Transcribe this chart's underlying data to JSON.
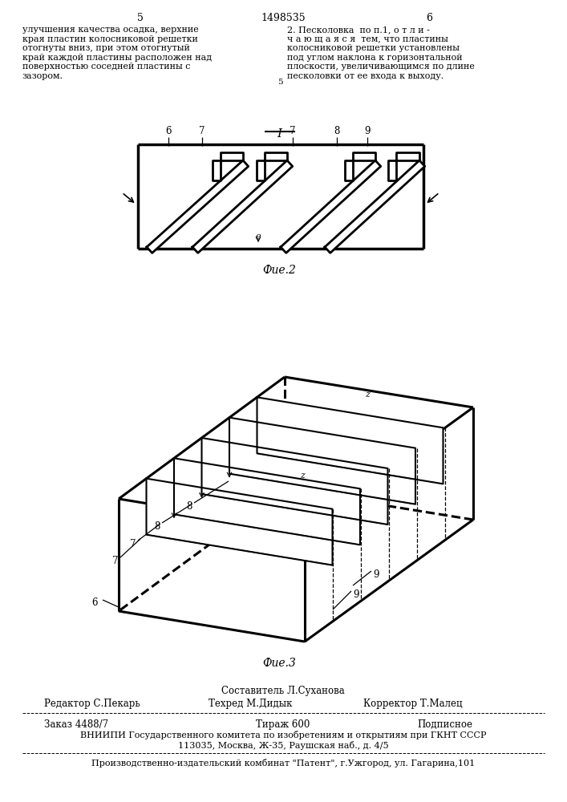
{
  "page_number_left": "5",
  "page_number_right": "6",
  "patent_number": "1498535",
  "text_left": "улучшения качества осадка, верхние\nкрая пластин колосниковой решетки\nотогнуты вниз, при этом отогнутый\nкрай каждой пластины расположен над\nповерхностью соседней пластины с\nзазором.",
  "text_right": "2. Песколовка  по п.1, о т л и -\nч а ю щ а я с я  тем, что пластины\nколосниковой решетки установлены\nпод углом наклона к горизонтальной\nплоскости, увеличивающимся по длине\nпесколовки от ее входа к выходу.",
  "fig2_label": "Фие.2",
  "fig3_label": "Фие.3",
  "fig1_roman": "I",
  "editor_line": "Редактор С.Пекарь",
  "composer_line": "Составитель Л.Суханова",
  "tech_line": "Техред М.Дидык",
  "corrector_line": "Корректор Т.Малец",
  "order_line": "Заказ 4488/7",
  "edition_line": "Тираж 600",
  "subscription_line": "Подписное",
  "vnipi_line": "ВНИИПИ Государственного комитета по изобретениям и открытиям при ГКНТ СССР",
  "address_line": "113035, Москва, Ж-35, Раушская наб., д. 4/5",
  "factory_line": "Производственно-издательский комбинат \"Патент\", г.Ужгород, ул. Гагарина,101",
  "bg_color": "#ffffff",
  "line_color": "#000000",
  "text_color": "#000000"
}
